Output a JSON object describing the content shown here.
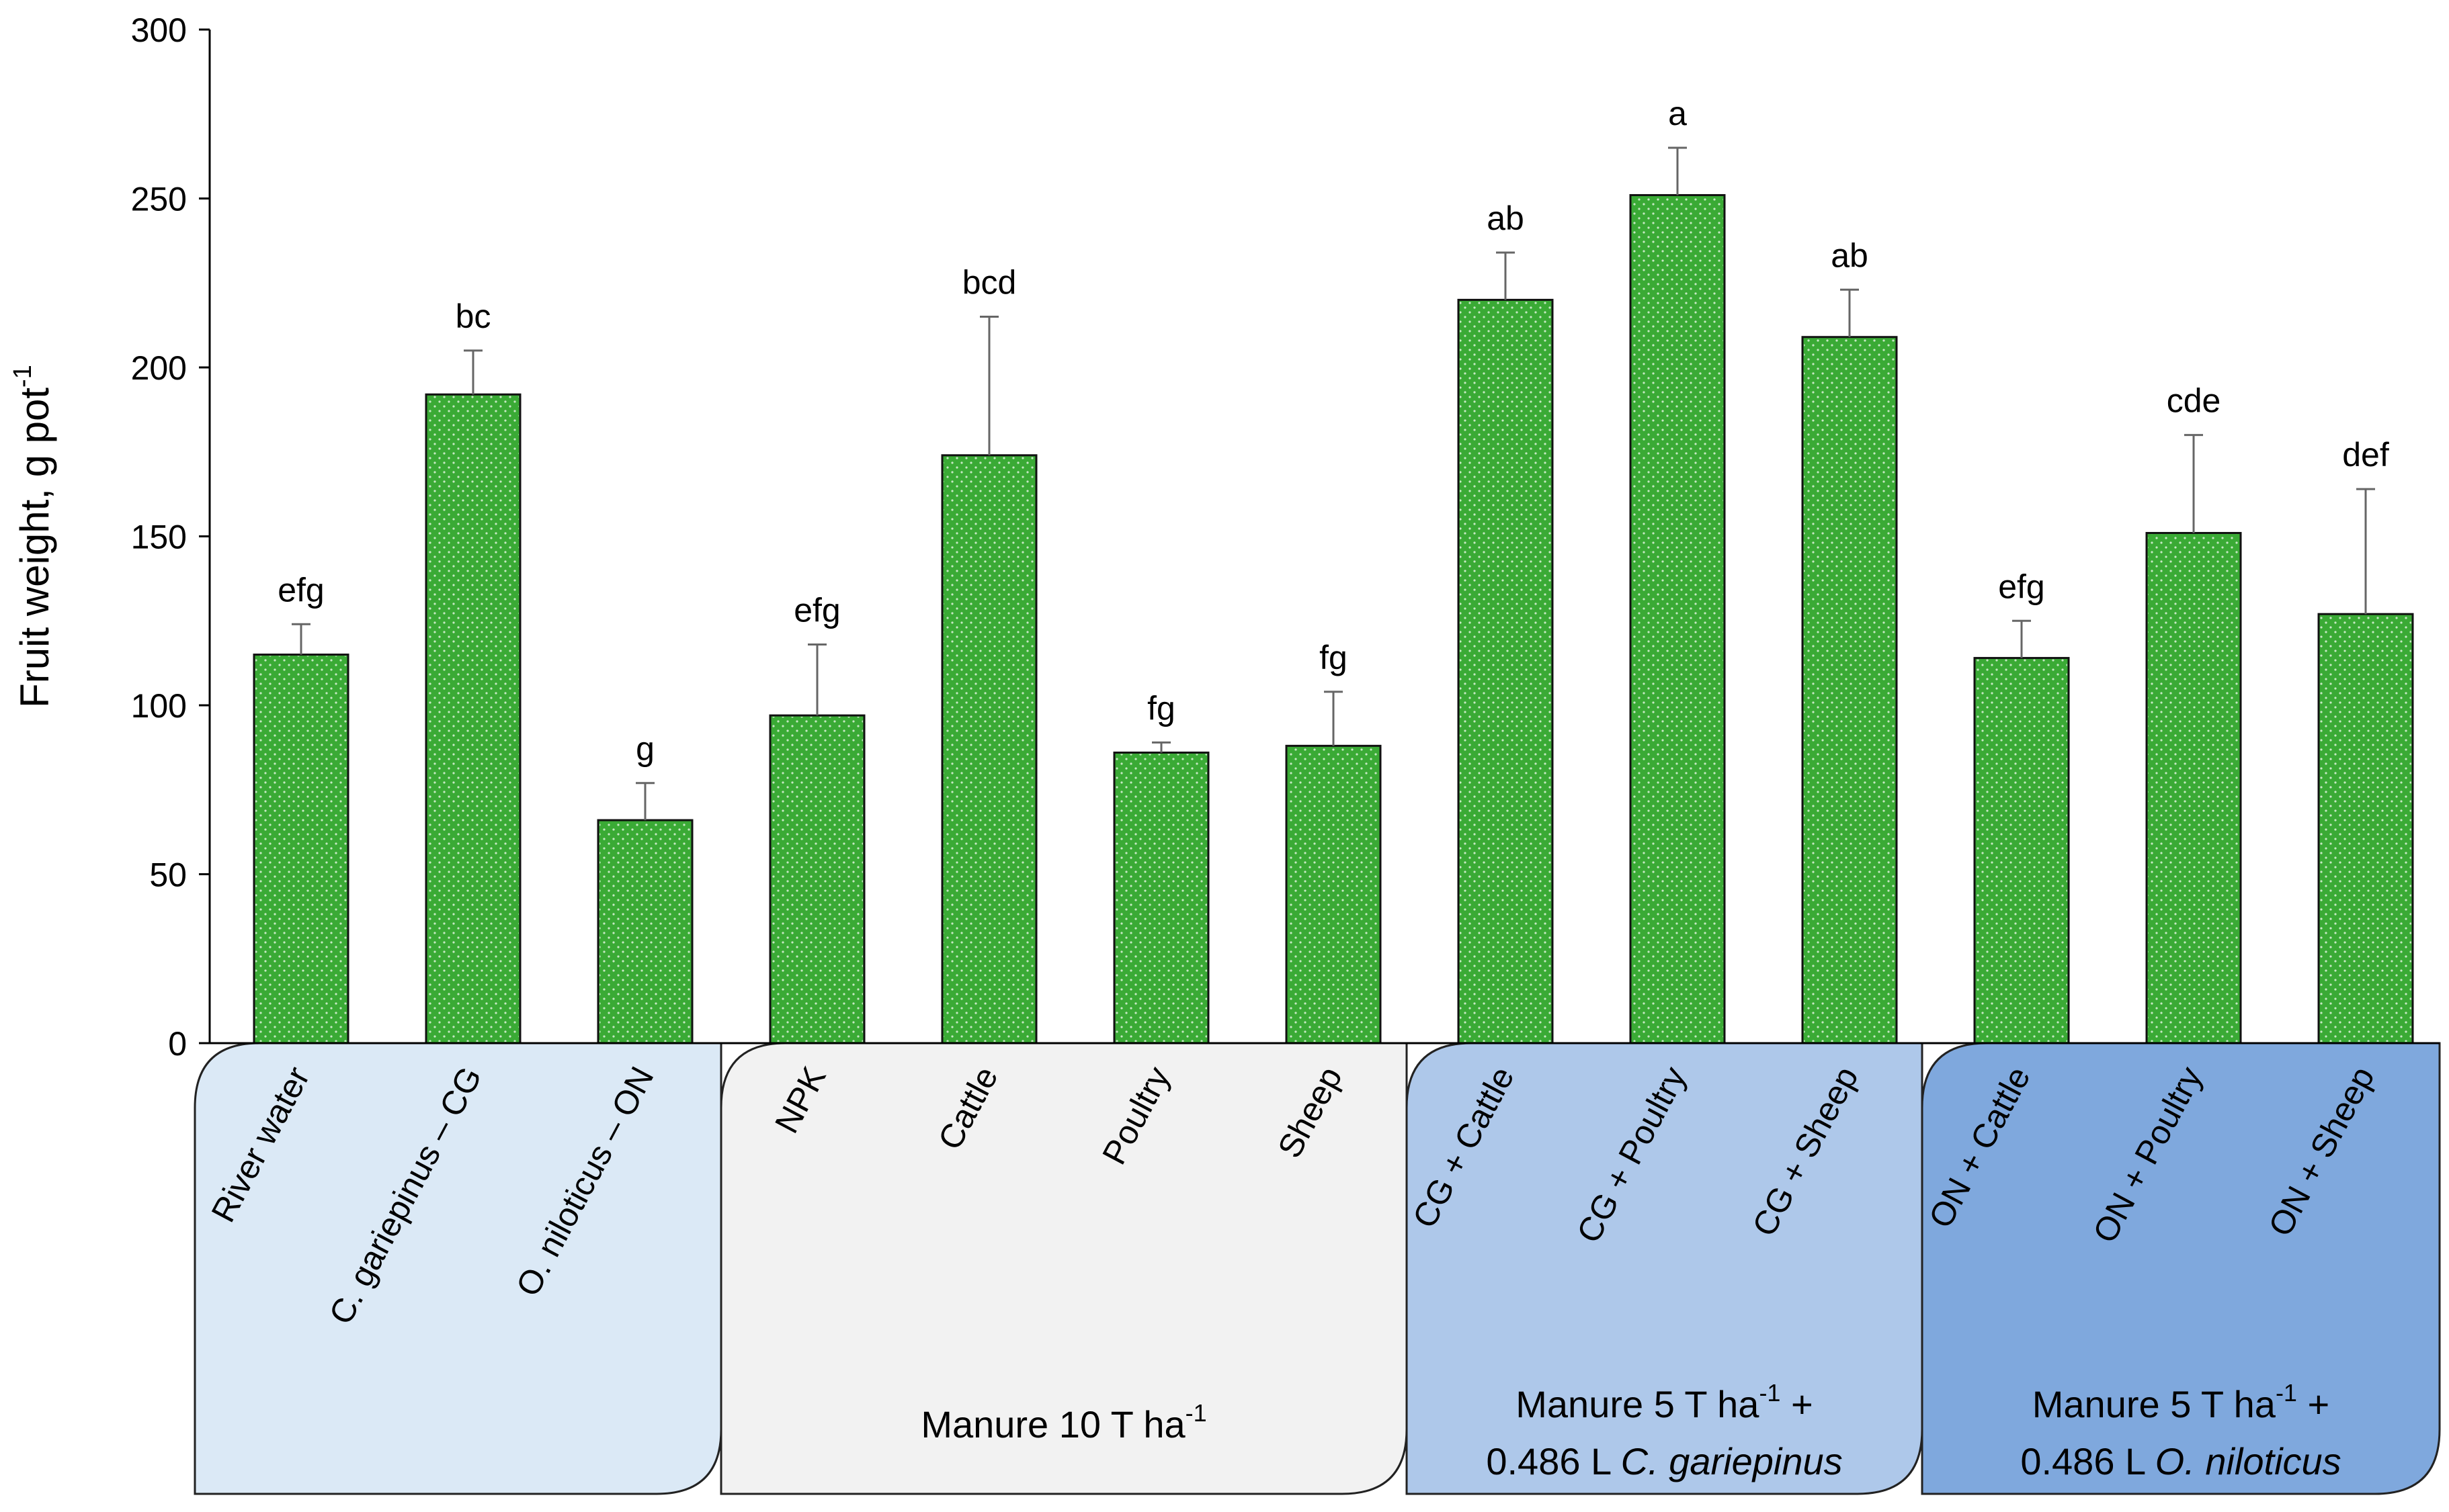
{
  "colors": {
    "bar_fill": "#3aaa35",
    "bar_stroke": "#111111",
    "error_bar": "#666666",
    "group_fills": [
      "#dbe9f6",
      "#f2f2f2",
      "#aec8ea",
      "#7fa8dd"
    ]
  },
  "chart_data": {
    "type": "bar",
    "ylabel": "Fruit weight, g pot",
    "ylabel_superscript": "-1",
    "ylim": [
      0,
      300
    ],
    "yticks": [
      "0",
      "50",
      "100",
      "150",
      "200",
      "250",
      "300"
    ],
    "grid": false,
    "legend": "none",
    "categories": [
      "River water",
      "C. gariepinus – CG",
      "O. niloticus – ON",
      "NPK",
      "Cattle",
      "Poultry",
      "Sheep",
      "CG + Cattle",
      "CG + Poultry",
      "CG + Sheep",
      "ON + Cattle",
      "ON + Poultry",
      "ON + Sheep"
    ],
    "values": [
      115,
      192,
      66,
      97,
      174,
      86,
      88,
      220,
      251,
      209,
      114,
      151,
      127
    ],
    "error_plus": [
      9,
      13,
      11,
      21,
      41,
      3,
      16,
      14,
      14,
      14,
      11,
      29,
      37
    ],
    "significance_labels": [
      "efg",
      "bc",
      "g",
      "efg",
      "bcd",
      "fg",
      "fg",
      "ab",
      "a",
      "ab",
      "efg",
      "cde",
      "def"
    ],
    "groups": [
      {
        "indices": [
          0,
          1,
          2
        ],
        "label_lines": []
      },
      {
        "indices": [
          3,
          4,
          5,
          6
        ],
        "label_lines": [
          [
            "Manure  10 T ha",
            "-1",
            ""
          ]
        ]
      },
      {
        "indices": [
          7,
          8,
          9
        ],
        "label_lines": [
          [
            "Manure  5 T ha",
            "-1",
            " +"
          ],
          [
            "0.486 L ",
            "",
            "",
            "C. gariepinus"
          ]
        ]
      },
      {
        "indices": [
          10,
          11,
          12
        ],
        "label_lines": [
          [
            "Manure  5 T ha",
            "-1",
            " +"
          ],
          [
            "0.486 L ",
            "",
            "",
            "O. niloticus"
          ]
        ]
      }
    ]
  }
}
